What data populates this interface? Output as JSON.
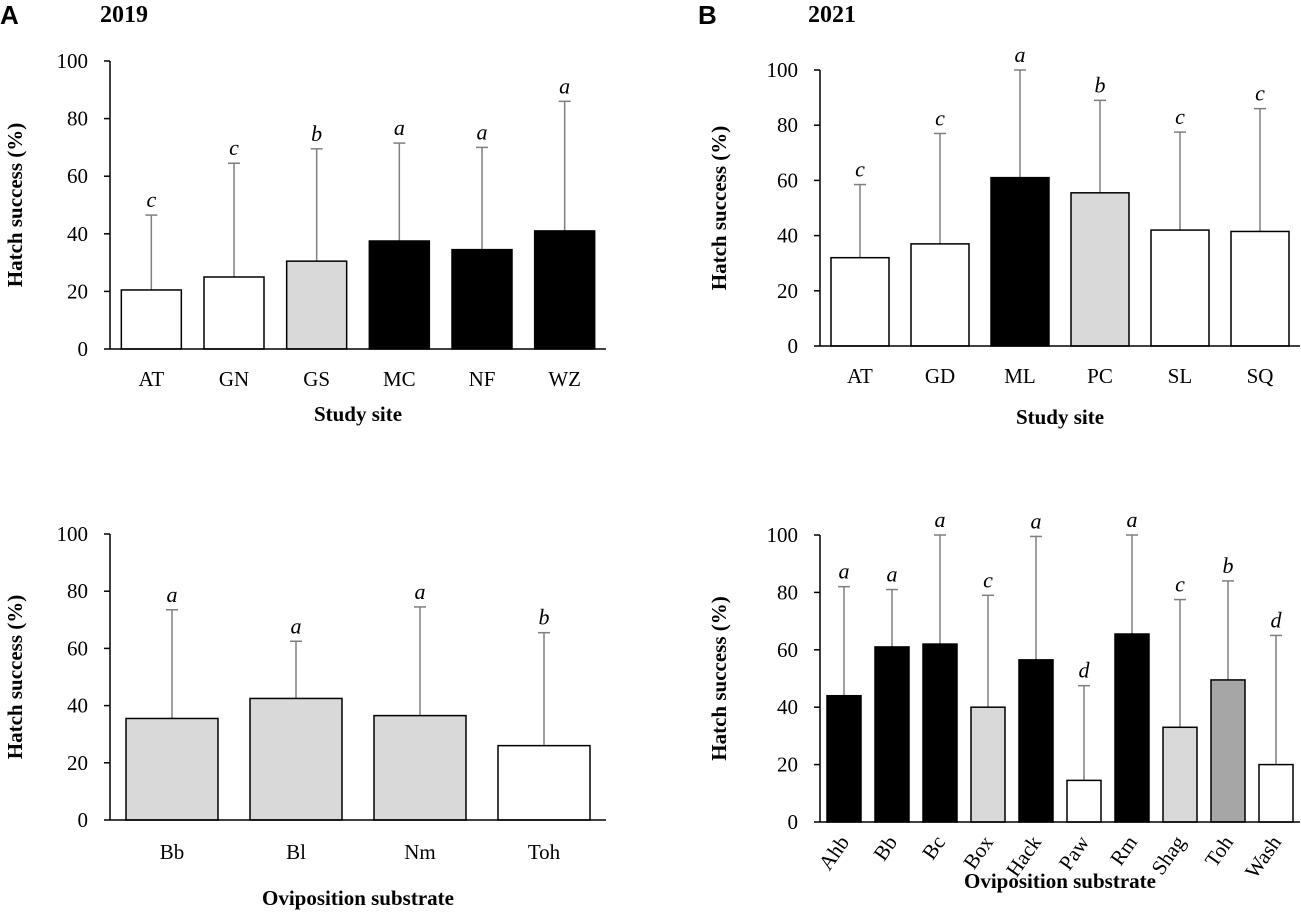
{
  "panels": {
    "A": {
      "letter": "A",
      "year": "2019"
    },
    "B": {
      "letter": "B",
      "year": "2021"
    }
  },
  "colors": {
    "white": "#ffffff",
    "light_gray": "#d9d9d9",
    "mid_gray": "#a6a6a6",
    "black": "#000000",
    "error_bar": "#7f7f7f"
  },
  "chart_data": [
    {
      "id": "a-top",
      "type": "bar",
      "panel": "A",
      "title": "2019",
      "xlabel": "Study site",
      "ylabel": "Hatch success (%)",
      "ylim": [
        0,
        100
      ],
      "yticks": [
        0,
        20,
        40,
        60,
        80,
        100
      ],
      "categories": [
        "AT",
        "GN",
        "GS",
        "MC",
        "NF",
        "WZ"
      ],
      "values": [
        20.5,
        25,
        30.5,
        37.5,
        34.5,
        41
      ],
      "error_upper": [
        46.5,
        64.5,
        69.5,
        71.5,
        70,
        86
      ],
      "letters": [
        "c",
        "c",
        "b",
        "a",
        "a",
        "a"
      ],
      "fills": [
        "white",
        "white",
        "light_gray",
        "black",
        "black",
        "black"
      ]
    },
    {
      "id": "b-top",
      "type": "bar",
      "panel": "B",
      "title": "2021",
      "xlabel": "Study site",
      "ylabel": "Hatch success (%)",
      "ylim": [
        0,
        100
      ],
      "yticks": [
        0,
        20,
        40,
        60,
        80,
        100
      ],
      "categories": [
        "AT",
        "GD",
        "ML",
        "PC",
        "SL",
        "SQ"
      ],
      "values": [
        32,
        37,
        61,
        55.5,
        42,
        41.5
      ],
      "error_upper": [
        58.5,
        77,
        100,
        89,
        77.5,
        86
      ],
      "letters": [
        "c",
        "c",
        "a",
        "b",
        "c",
        "c"
      ],
      "fills": [
        "white",
        "white",
        "black",
        "light_gray",
        "white",
        "white"
      ]
    },
    {
      "id": "a-bottom",
      "type": "bar",
      "panel": "A",
      "title": "",
      "xlabel": "Oviposition substrate",
      "ylabel": "Hatch success (%)",
      "ylim": [
        0,
        100
      ],
      "yticks": [
        0,
        20,
        40,
        60,
        80,
        100
      ],
      "categories": [
        "Bb",
        "Bl",
        "Nm",
        "Toh"
      ],
      "values": [
        35.5,
        42.5,
        36.5,
        26
      ],
      "error_upper": [
        73.5,
        62.5,
        74.5,
        65.5
      ],
      "letters": [
        "a",
        "a",
        "a",
        "b"
      ],
      "fills": [
        "light_gray",
        "light_gray",
        "light_gray",
        "white"
      ]
    },
    {
      "id": "b-bottom",
      "type": "bar",
      "panel": "B",
      "title": "",
      "xlabel": "Oviposition substrate",
      "ylabel": "Hatch success (%)",
      "ylim": [
        0,
        100
      ],
      "yticks": [
        0,
        20,
        40,
        60,
        80,
        100
      ],
      "categories": [
        "Ahb",
        "Bb",
        "Bc",
        "Box",
        "Hack",
        "Paw",
        "Rm",
        "Shag",
        "Toh",
        "Wash"
      ],
      "values": [
        44,
        61,
        62,
        40,
        56.5,
        14.5,
        65.5,
        33,
        49.5,
        20
      ],
      "error_upper": [
        82,
        81,
        100,
        79,
        99.5,
        47.5,
        100,
        77.5,
        84,
        65
      ],
      "letters": [
        "a",
        "a",
        "a",
        "c",
        "a",
        "d",
        "a",
        "c",
        "b",
        "d"
      ],
      "fills": [
        "black",
        "black",
        "black",
        "light_gray",
        "black",
        "white",
        "black",
        "light_gray",
        "mid_gray",
        "white"
      ]
    }
  ]
}
